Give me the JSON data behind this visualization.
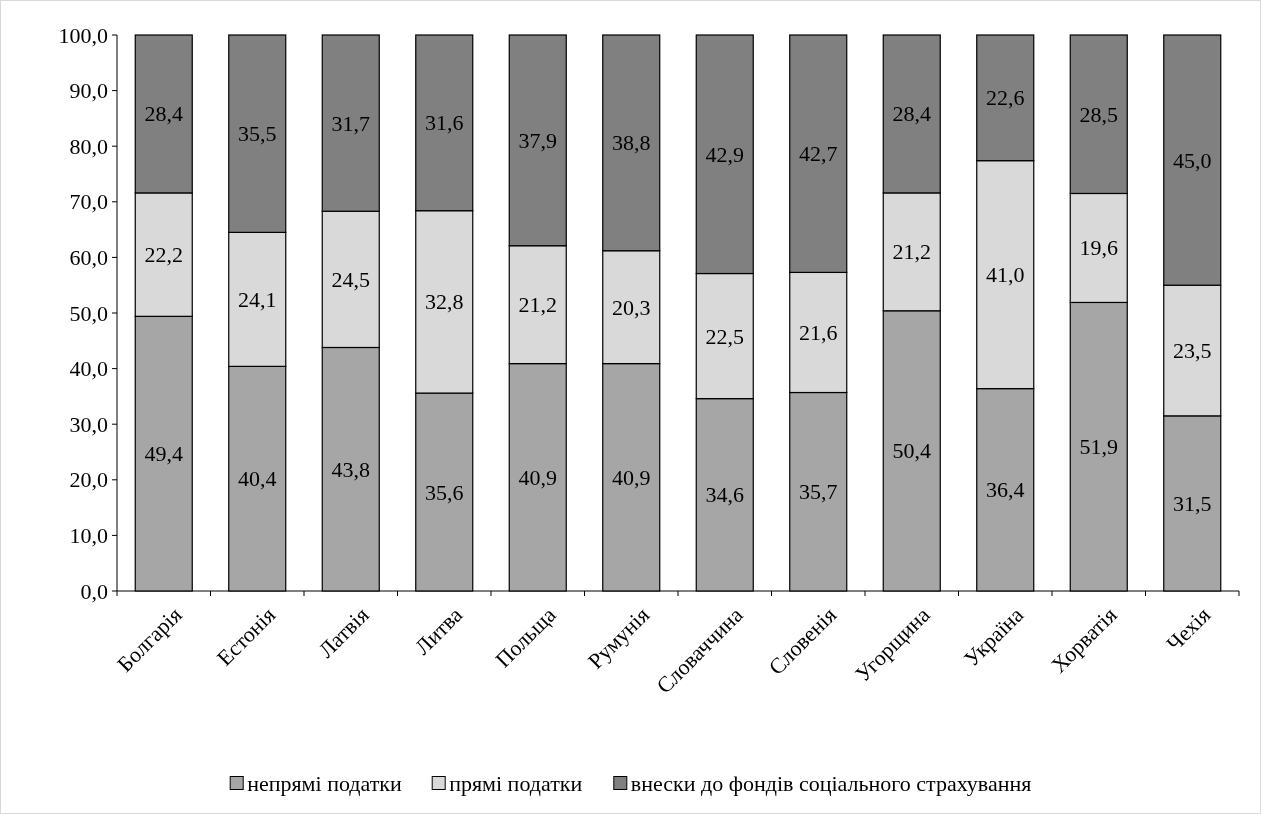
{
  "chart_data": {
    "type": "bar",
    "stacked": true,
    "categories": [
      "Болгарія",
      "Естонія",
      "Латвія",
      "Литва",
      "Польща",
      "Румунія",
      "Словаччина",
      "Словенія",
      "Угорщина",
      "Україна",
      "Хорватія",
      "Чехія"
    ],
    "series": [
      {
        "name": "непрямі податки",
        "color": "#a6a6a6",
        "values": [
          49.4,
          40.4,
          43.8,
          35.6,
          40.9,
          40.9,
          34.6,
          35.7,
          50.4,
          36.4,
          51.9,
          31.5
        ],
        "value_labels": [
          "49,4",
          "40,4",
          "43,8",
          "35,6",
          "40,9",
          "40,9",
          "34,6",
          "35,7",
          "50,4",
          "36,4",
          "51,9",
          "31,5"
        ]
      },
      {
        "name": "прямі податки",
        "color": "#d9d9d9",
        "values": [
          22.2,
          24.1,
          24.5,
          32.8,
          21.2,
          20.3,
          22.5,
          21.6,
          21.2,
          41.0,
          19.6,
          23.5
        ],
        "value_labels": [
          "22,2",
          "24,1",
          "24,5",
          "32,8",
          "21,2",
          "20,3",
          "22,5",
          "21,6",
          "21,2",
          "41,0",
          "19,6",
          "23,5"
        ]
      },
      {
        "name": "внески до фондів соціального страхування",
        "color": "#808080",
        "values": [
          28.4,
          35.5,
          31.7,
          31.6,
          37.9,
          38.8,
          42.9,
          42.7,
          28.4,
          22.6,
          28.5,
          45.0
        ],
        "value_labels": [
          "28,4",
          "35,5",
          "31,7",
          "31,6",
          "37,9",
          "38,8",
          "42,9",
          "42,7",
          "28,4",
          "22,6",
          "28,5",
          "45,0"
        ]
      }
    ],
    "ylim": [
      0,
      100
    ],
    "yticks": [
      {
        "value": 0,
        "label": "0,0"
      },
      {
        "value": 10,
        "label": "10,0"
      },
      {
        "value": 20,
        "label": "20,0"
      },
      {
        "value": 30,
        "label": "30,0"
      },
      {
        "value": 40,
        "label": "40,0"
      },
      {
        "value": 50,
        "label": "50,0"
      },
      {
        "value": 60,
        "label": "60,0"
      },
      {
        "value": 70,
        "label": "70,0"
      },
      {
        "value": 80,
        "label": "80,0"
      },
      {
        "value": 90,
        "label": "90,0"
      },
      {
        "value": 100,
        "label": "100,0"
      }
    ],
    "grid": false,
    "legend": "bottom"
  }
}
